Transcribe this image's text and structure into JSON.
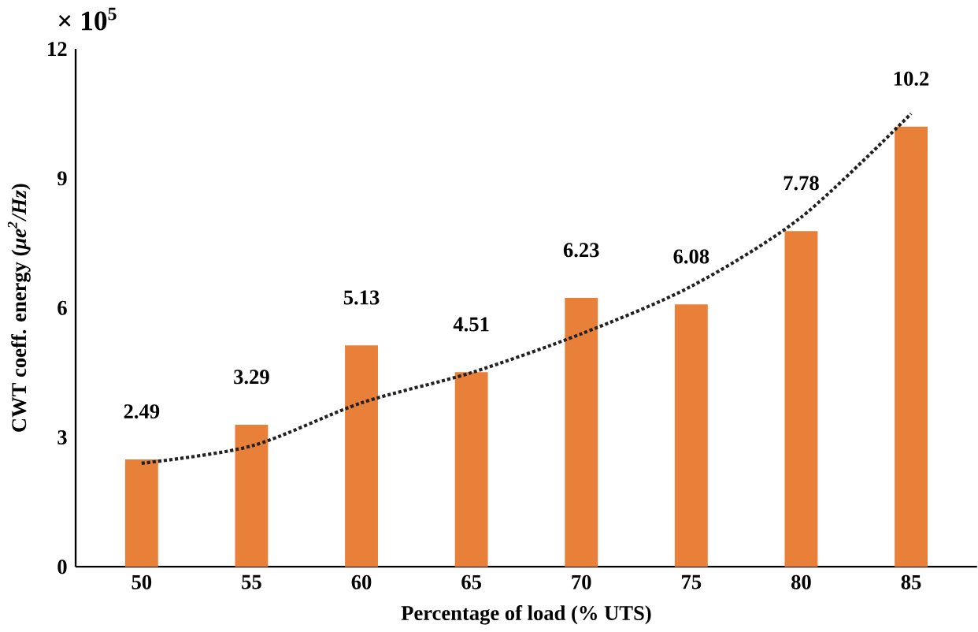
{
  "chart_data": {
    "type": "bar",
    "xlabel": "Percentage of load (% UTS)",
    "ylabel": "CWT coeff. energy (*μe$^{2}$/Hz*)",
    "annotations": [
      "× 10$^{5}$"
    ],
    "categories": [
      "50",
      "55",
      "60",
      "65",
      "70",
      "75",
      "80",
      "85"
    ],
    "series": [
      {
        "color": "#e8803a",
        "values": [
          2.49,
          3.29,
          5.13,
          4.51,
          6.23,
          6.08,
          7.78,
          10.2
        ],
        "value_labels": [
          "2.49",
          "3.29",
          "5.13",
          "4.51",
          "6.23",
          "6.08",
          "7.78",
          "10.2"
        ]
      },
      {
        "type": "line",
        "color": "#222222",
        "line_style": "dotted",
        "marker": "none",
        "values": [
          2.4,
          2.8,
          3.8,
          4.5,
          5.4,
          6.5,
          8.1,
          10.5
        ]
      }
    ],
    "ylim": [
      0,
      12
    ],
    "yticks": [
      0,
      3,
      6,
      9,
      12
    ]
  }
}
